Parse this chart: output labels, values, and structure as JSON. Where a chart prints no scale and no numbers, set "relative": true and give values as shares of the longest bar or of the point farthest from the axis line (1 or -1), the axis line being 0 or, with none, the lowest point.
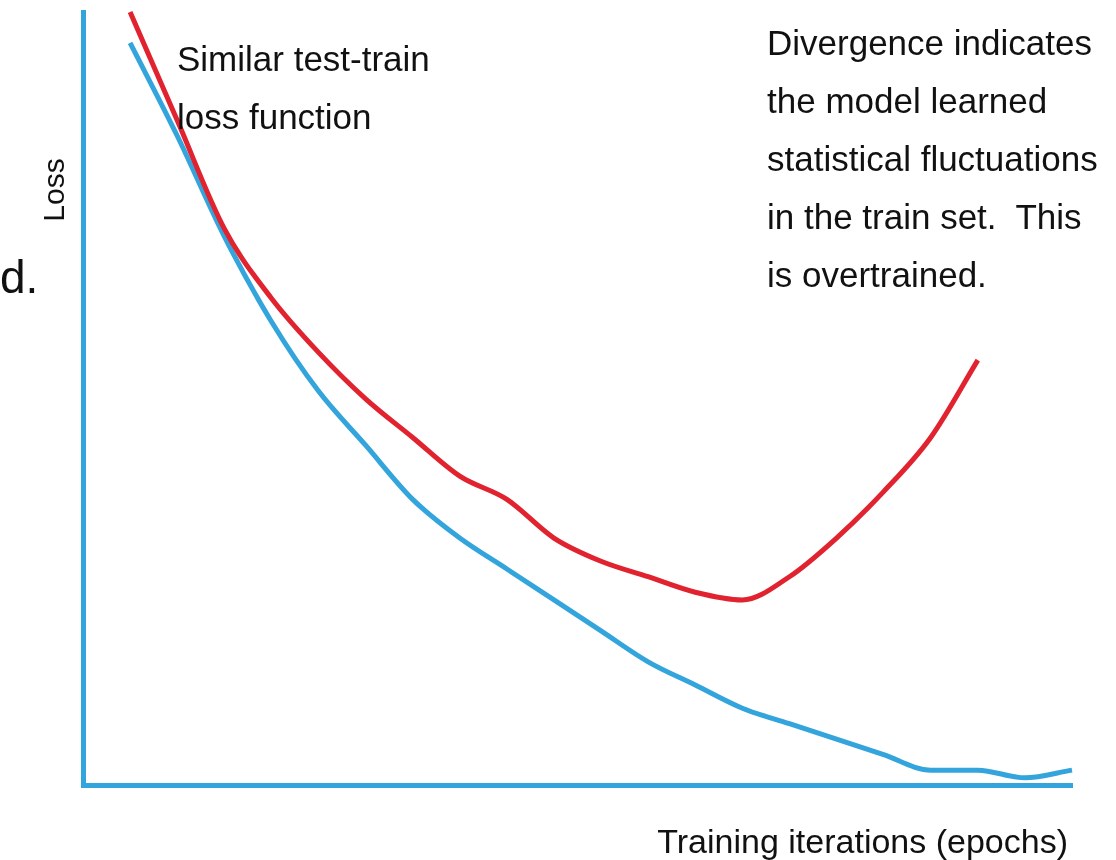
{
  "chart_data": {
    "type": "line",
    "relative": true,
    "xlabel": "Training iterations (epochs)",
    "ylabel": "Loss",
    "categories": [
      null,
      null,
      null,
      null,
      null,
      null,
      null,
      null,
      null,
      null,
      null,
      null,
      null,
      null,
      null,
      null,
      null,
      null,
      null,
      null,
      null,
      null
    ],
    "series": [
      {
        "color": "#e0232f",
        "values": [
          null,
          1,
          0.86,
          0.72,
          0.63,
          0.56,
          0.5,
          0.45,
          0.4,
          0.37,
          0.32,
          0.29,
          0.27,
          0.25,
          0.24,
          0.27,
          0.32,
          0.38,
          0.45,
          0.55,
          null,
          null
        ]
      },
      {
        "color": "#33a5dc",
        "values": [
          null,
          0.96,
          0.84,
          0.71,
          0.6,
          0.51,
          0.44,
          0.37,
          0.32,
          0.28,
          0.24,
          0.2,
          0.16,
          0.13,
          0.1,
          0.08,
          0.06,
          0.04,
          0.02,
          0.02,
          0.01,
          0.02
        ]
      }
    ],
    "annotations": [
      "Similar test-train loss function",
      "Divergence indicates the model learned statistical fluctuations in the train set.  This is overtrained.",
      "d."
    ],
    "legend": false,
    "grid": false,
    "marker": "none",
    "line_style": "solid"
  }
}
